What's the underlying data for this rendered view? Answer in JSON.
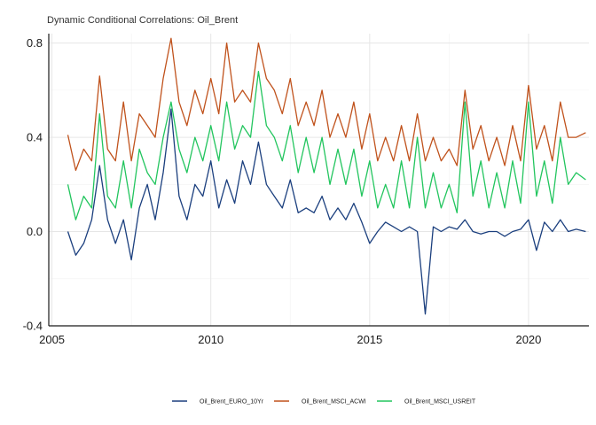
{
  "chart_data": {
    "type": "line",
    "title": "Dynamic Conditional Correlations: Oil_Brent",
    "xlabel": "",
    "ylabel": "",
    "xlim": [
      2004.9,
      2021.9
    ],
    "ylim": [
      -0.4,
      0.84
    ],
    "x_ticks": [
      2005,
      2010,
      2015,
      2020
    ],
    "x_tick_labels": [
      "2005",
      "2010",
      "2015",
      "2020"
    ],
    "y_ticks": [
      -0.4,
      0.0,
      0.4,
      0.8
    ],
    "y_tick_labels": [
      "-0.4",
      "0.0",
      "0.4",
      "0.8"
    ],
    "grid": true,
    "legend_position": "bottom",
    "series": [
      {
        "name": "Oil_Brent_EURO_10Yr",
        "color": "#1b3f7e",
        "x": [
          2005.5,
          2005.75,
          2006.0,
          2006.25,
          2006.5,
          2006.75,
          2007.0,
          2007.25,
          2007.5,
          2007.75,
          2008.0,
          2008.25,
          2008.5,
          2008.75,
          2009.0,
          2009.25,
          2009.5,
          2009.75,
          2010.0,
          2010.25,
          2010.5,
          2010.75,
          2011.0,
          2011.25,
          2011.5,
          2011.75,
          2012.0,
          2012.25,
          2012.5,
          2012.75,
          2013.0,
          2013.25,
          2013.5,
          2013.75,
          2014.0,
          2014.25,
          2014.5,
          2014.75,
          2015.0,
          2015.25,
          2015.5,
          2015.75,
          2016.0,
          2016.25,
          2016.5,
          2016.75,
          2017.0,
          2017.25,
          2017.5,
          2017.75,
          2018.0,
          2018.25,
          2018.5,
          2018.75,
          2019.0,
          2019.25,
          2019.5,
          2019.75,
          2020.0,
          2020.25,
          2020.5,
          2020.75,
          2021.0,
          2021.25,
          2021.5,
          2021.8
        ],
        "y": [
          0.0,
          -0.1,
          -0.05,
          0.05,
          0.28,
          0.05,
          -0.05,
          0.05,
          -0.12,
          0.1,
          0.2,
          0.05,
          0.25,
          0.52,
          0.15,
          0.05,
          0.2,
          0.15,
          0.3,
          0.1,
          0.22,
          0.12,
          0.3,
          0.2,
          0.38,
          0.2,
          0.15,
          0.1,
          0.22,
          0.08,
          0.1,
          0.08,
          0.15,
          0.05,
          0.1,
          0.05,
          0.12,
          0.04,
          -0.05,
          0.0,
          0.04,
          0.02,
          0.0,
          0.02,
          0.0,
          -0.35,
          0.02,
          0.0,
          0.02,
          0.01,
          0.05,
          0.0,
          -0.01,
          0.0,
          0.0,
          -0.02,
          0.0,
          0.01,
          0.05,
          -0.08,
          0.04,
          0.0,
          0.05,
          0.0,
          0.01,
          0.0
        ]
      },
      {
        "name": "Oil_Brent_MSCI_ACWI",
        "color": "#c0521c",
        "x": [
          2005.5,
          2005.75,
          2006.0,
          2006.25,
          2006.5,
          2006.75,
          2007.0,
          2007.25,
          2007.5,
          2007.75,
          2008.0,
          2008.25,
          2008.5,
          2008.75,
          2009.0,
          2009.25,
          2009.5,
          2009.75,
          2010.0,
          2010.25,
          2010.5,
          2010.75,
          2011.0,
          2011.25,
          2011.5,
          2011.75,
          2012.0,
          2012.25,
          2012.5,
          2012.75,
          2013.0,
          2013.25,
          2013.5,
          2013.75,
          2014.0,
          2014.25,
          2014.5,
          2014.75,
          2015.0,
          2015.25,
          2015.5,
          2015.75,
          2016.0,
          2016.25,
          2016.5,
          2016.75,
          2017.0,
          2017.25,
          2017.5,
          2017.75,
          2018.0,
          2018.25,
          2018.5,
          2018.75,
          2019.0,
          2019.25,
          2019.5,
          2019.75,
          2020.0,
          2020.25,
          2020.5,
          2020.75,
          2021.0,
          2021.25,
          2021.5,
          2021.8
        ],
        "y": [
          0.41,
          0.26,
          0.35,
          0.3,
          0.66,
          0.35,
          0.3,
          0.55,
          0.3,
          0.5,
          0.45,
          0.4,
          0.65,
          0.82,
          0.55,
          0.45,
          0.6,
          0.5,
          0.65,
          0.5,
          0.8,
          0.55,
          0.6,
          0.55,
          0.8,
          0.65,
          0.6,
          0.5,
          0.65,
          0.45,
          0.55,
          0.45,
          0.6,
          0.4,
          0.5,
          0.4,
          0.55,
          0.35,
          0.5,
          0.3,
          0.4,
          0.3,
          0.45,
          0.3,
          0.5,
          0.3,
          0.4,
          0.3,
          0.35,
          0.28,
          0.6,
          0.35,
          0.45,
          0.3,
          0.4,
          0.28,
          0.45,
          0.3,
          0.62,
          0.35,
          0.45,
          0.3,
          0.55,
          0.4,
          0.4,
          0.42
        ]
      },
      {
        "name": "Oil_Brent_MSCI_USREIT",
        "color": "#22c55e",
        "x": [
          2005.5,
          2005.75,
          2006.0,
          2006.25,
          2006.5,
          2006.75,
          2007.0,
          2007.25,
          2007.5,
          2007.75,
          2008.0,
          2008.25,
          2008.5,
          2008.75,
          2009.0,
          2009.25,
          2009.5,
          2009.75,
          2010.0,
          2010.25,
          2010.5,
          2010.75,
          2011.0,
          2011.25,
          2011.5,
          2011.75,
          2012.0,
          2012.25,
          2012.5,
          2012.75,
          2013.0,
          2013.25,
          2013.5,
          2013.75,
          2014.0,
          2014.25,
          2014.5,
          2014.75,
          2015.0,
          2015.25,
          2015.5,
          2015.75,
          2016.0,
          2016.25,
          2016.5,
          2016.75,
          2017.0,
          2017.25,
          2017.5,
          2017.75,
          2018.0,
          2018.25,
          2018.5,
          2018.75,
          2019.0,
          2019.25,
          2019.5,
          2019.75,
          2020.0,
          2020.25,
          2020.5,
          2020.75,
          2021.0,
          2021.25,
          2021.5,
          2021.8
        ],
        "y": [
          0.2,
          0.05,
          0.15,
          0.1,
          0.5,
          0.15,
          0.1,
          0.3,
          0.1,
          0.35,
          0.25,
          0.2,
          0.4,
          0.55,
          0.35,
          0.25,
          0.4,
          0.3,
          0.45,
          0.3,
          0.55,
          0.35,
          0.45,
          0.4,
          0.68,
          0.45,
          0.4,
          0.3,
          0.45,
          0.25,
          0.4,
          0.25,
          0.4,
          0.2,
          0.35,
          0.2,
          0.35,
          0.15,
          0.3,
          0.1,
          0.2,
          0.1,
          0.3,
          0.1,
          0.4,
          0.1,
          0.25,
          0.1,
          0.2,
          0.08,
          0.55,
          0.15,
          0.3,
          0.1,
          0.25,
          0.1,
          0.3,
          0.12,
          0.55,
          0.15,
          0.3,
          0.12,
          0.4,
          0.2,
          0.25,
          0.22
        ]
      }
    ]
  }
}
